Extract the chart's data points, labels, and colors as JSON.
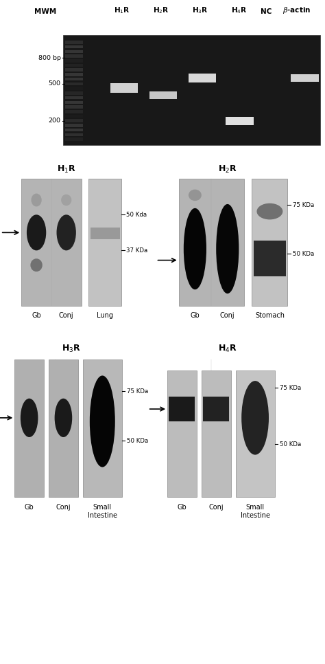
{
  "gel_title_labels": [
    "MWM",
    "H$_1$R",
    "H$_2$R",
    "H$_3$R",
    "H$_4$R",
    "NC",
    "$\\beta$-actin"
  ],
  "gel_marker_labels": [
    "800 bp",
    "500",
    "200"
  ],
  "wb_titles": [
    "H$_1$R",
    "H$_2$R",
    "H$_3$R",
    "H$_4$R"
  ],
  "wb_xlabels_1": [
    "Gb",
    "Conj",
    "Lung"
  ],
  "wb_xlabels_2": [
    "Gb",
    "Conj",
    "Stomach"
  ],
  "wb_xlabels_3": [
    "Gb",
    "Conj",
    "Small\nIntestine"
  ],
  "wb_xlabels_4": [
    "Gb",
    "Conj",
    "Small\nIntestine"
  ],
  "kda_labels_1": [
    "50 Kda",
    "37 KDa"
  ],
  "kda_labels_2": [
    "75 KDa",
    "50 KDa"
  ],
  "kda_labels_3": [
    "75 KDa",
    "50 KDa"
  ],
  "kda_labels_4": [
    "75 KDa",
    "50 KDa"
  ]
}
